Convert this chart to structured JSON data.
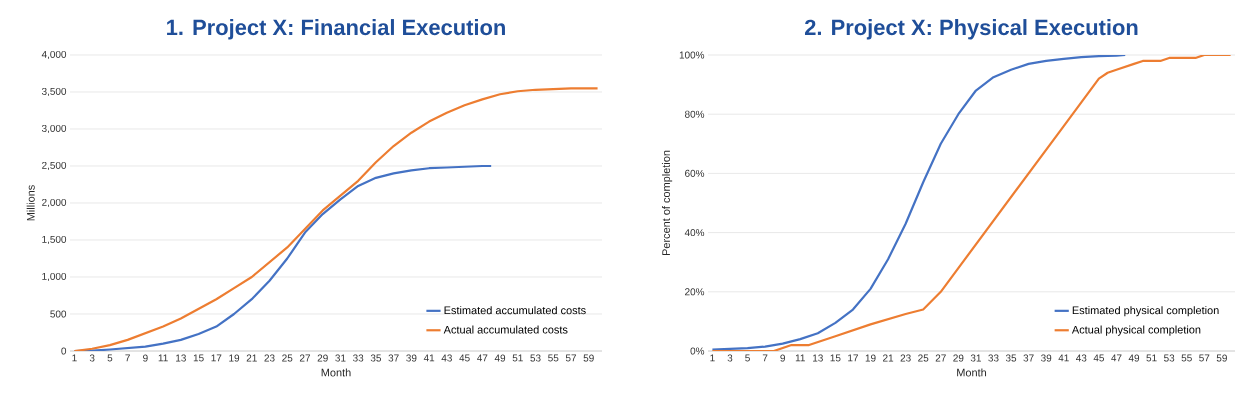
{
  "chart_data": [
    {
      "type": "line",
      "title": "1. Project X: Financial Execution",
      "xlabel": "Month",
      "ylabel": "Millions",
      "xlim": [
        0.5,
        60.5
      ],
      "xticks": [
        1,
        3,
        5,
        7,
        9,
        11,
        13,
        15,
        17,
        19,
        21,
        23,
        25,
        27,
        29,
        31,
        33,
        35,
        37,
        39,
        41,
        43,
        45,
        47,
        49,
        51,
        53,
        55,
        57,
        59
      ],
      "ylim": [
        0,
        4000
      ],
      "yticks": [
        0,
        500,
        {
          "value": 1000,
          "label": "1,000"
        },
        {
          "value": 1500,
          "label": "1,500"
        },
        {
          "value": 2000,
          "label": "2,000"
        },
        {
          "value": 2500,
          "label": "2,500"
        },
        {
          "value": 3000,
          "label": "3,000"
        },
        {
          "value": 3500,
          "label": "3,500"
        },
        {
          "value": 4000,
          "label": "4,000"
        }
      ],
      "grid": "y",
      "legend": "bottom right",
      "series": [
        {
          "name": "Estimated accumulated costs",
          "color": "#4472c4",
          "x": [
            1,
            3,
            5,
            7,
            9,
            11,
            13,
            15,
            17,
            19,
            21,
            23,
            25,
            27,
            29,
            31,
            33,
            35,
            37,
            39,
            41,
            43,
            45,
            47,
            48
          ],
          "values": [
            0,
            5,
            20,
            40,
            60,
            100,
            150,
            230,
            330,
            500,
            700,
            950,
            1250,
            1600,
            1850,
            2050,
            2230,
            2340,
            2400,
            2440,
            2470,
            2480,
            2490,
            2500,
            2500
          ]
        },
        {
          "name": "Actual accumulated costs",
          "color": "#ed7d31",
          "x": [
            1,
            3,
            5,
            7,
            9,
            11,
            13,
            15,
            17,
            19,
            21,
            23,
            25,
            27,
            29,
            31,
            33,
            35,
            37,
            39,
            41,
            43,
            45,
            47,
            49,
            51,
            53,
            55,
            57,
            60
          ],
          "values": [
            0,
            30,
            80,
            150,
            240,
            330,
            440,
            570,
            700,
            850,
            1000,
            1200,
            1400,
            1650,
            1900,
            2100,
            2300,
            2550,
            2770,
            2950,
            3100,
            3220,
            3320,
            3400,
            3470,
            3510,
            3530,
            3540,
            3550,
            3550
          ]
        }
      ]
    },
    {
      "type": "line",
      "title": "2. Project X: Physical Execution",
      "xlabel": "Month",
      "ylabel": "Percent of completion",
      "xlim": [
        0.5,
        60.5
      ],
      "xticks": [
        1,
        3,
        5,
        7,
        9,
        11,
        13,
        15,
        17,
        19,
        21,
        23,
        25,
        27,
        29,
        31,
        33,
        35,
        37,
        39,
        41,
        43,
        45,
        47,
        49,
        51,
        53,
        55,
        57,
        59
      ],
      "ylim": [
        0,
        100
      ],
      "yticks": [
        {
          "value": 0,
          "label": "0%"
        },
        {
          "value": 20,
          "label": "20%"
        },
        {
          "value": 40,
          "label": "40%"
        },
        {
          "value": 60,
          "label": "60%"
        },
        {
          "value": 80,
          "label": "80%"
        },
        {
          "value": 100,
          "label": "100%"
        }
      ],
      "grid": "y",
      "legend": "bottom right",
      "series": [
        {
          "name": "Estimated physical completion",
          "color": "#4472c4",
          "x": [
            1,
            3,
            5,
            7,
            9,
            11,
            13,
            15,
            17,
            19,
            21,
            23,
            25,
            27,
            29,
            31,
            33,
            35,
            37,
            39,
            41,
            43,
            45,
            47,
            48
          ],
          "values": [
            0.5,
            0.7,
            1,
            1.5,
            2.5,
            4,
            6,
            9.5,
            14,
            21,
            31,
            43,
            57,
            70,
            80,
            88,
            92.5,
            95,
            97,
            98,
            98.7,
            99.3,
            99.6,
            99.8,
            100
          ]
        },
        {
          "name": "Actual physical completion",
          "color": "#ed7d31",
          "x": [
            1,
            8,
            10,
            12,
            15,
            19,
            23,
            25,
            27,
            29,
            31,
            33,
            35,
            37,
            39,
            41,
            43,
            45,
            46,
            47,
            49,
            50,
            52,
            53,
            56,
            57,
            60
          ],
          "values": [
            0,
            0,
            2,
            2,
            5,
            9,
            12.5,
            14,
            20,
            28,
            36,
            44,
            52,
            60,
            68,
            76,
            84,
            92,
            94,
            95,
            97,
            98,
            98,
            99,
            99,
            100,
            100
          ]
        }
      ]
    }
  ]
}
